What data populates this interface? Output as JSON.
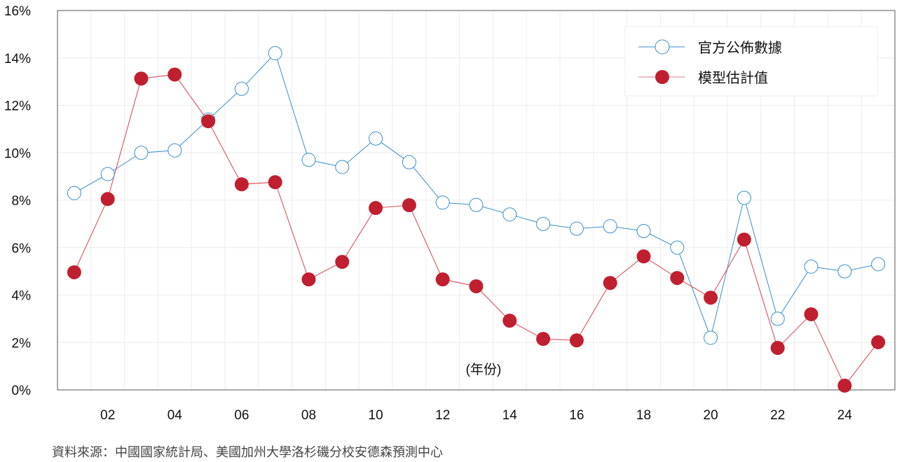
{
  "chart_data": {
    "type": "line",
    "x": [
      2001,
      2002,
      2003,
      2004,
      2005,
      2006,
      2007,
      2008,
      2009,
      2010,
      2011,
      2012,
      2013,
      2014,
      2015,
      2016,
      2017,
      2018,
      2019,
      2020,
      2021,
      2022,
      2023,
      2024,
      2025
    ],
    "x_tick_labels": [
      "02",
      "04",
      "06",
      "08",
      "10",
      "12",
      "14",
      "16",
      "18",
      "20",
      "22",
      "24"
    ],
    "x_tick_years": [
      2002,
      2004,
      2006,
      2008,
      2010,
      2012,
      2014,
      2016,
      2018,
      2020,
      2022,
      2024
    ],
    "y_tick_labels": [
      "0%",
      "2%",
      "4%",
      "6%",
      "8%",
      "10%",
      "12%",
      "14%",
      "16%"
    ],
    "ylim": [
      0,
      16
    ],
    "xlabel": "(年份)",
    "grid": true,
    "legend_placement": "top-right",
    "series": [
      {
        "name": "官方公佈數據",
        "color": "#3a8fc8",
        "marker": "open-circle",
        "values": [
          8.3,
          9.1,
          10.0,
          10.1,
          11.4,
          12.7,
          14.2,
          9.7,
          9.4,
          10.6,
          9.6,
          7.9,
          7.8,
          7.4,
          7.0,
          6.8,
          6.9,
          6.7,
          6.0,
          2.2,
          8.1,
          3.0,
          5.2,
          5.0,
          5.3
        ]
      },
      {
        "name": "模型估計值",
        "color": "#c01f30",
        "marker": "filled-circle",
        "values": [
          4.96,
          8.05,
          13.13,
          13.3,
          11.33,
          8.67,
          8.76,
          4.66,
          5.4,
          7.67,
          7.79,
          4.66,
          4.37,
          2.92,
          2.15,
          2.09,
          4.51,
          5.63,
          4.72,
          3.89,
          6.34,
          1.77,
          3.19,
          0.18,
          2.01
        ]
      }
    ]
  },
  "source": "資料來源：中國國家統計局、美國加州大學洛杉磯分校安德森預測中心"
}
